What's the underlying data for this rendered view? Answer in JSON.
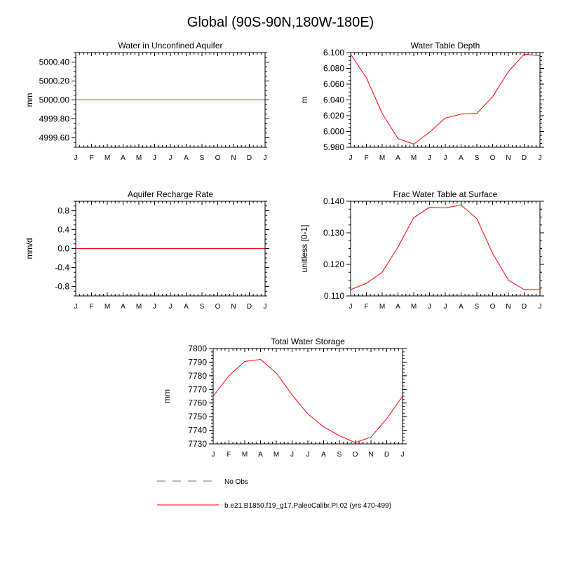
{
  "title": "Global (90S-90N,180W-180E)",
  "style": {
    "series_color": "#ff0000",
    "noobs_color": "#a0a0a0",
    "axis_color": "#000000"
  },
  "month_labels": [
    "J",
    "F",
    "M",
    "A",
    "M",
    "J",
    "J",
    "A",
    "S",
    "O",
    "N",
    "D",
    "J"
  ],
  "legend": {
    "noobs_label": "No Obs",
    "series_label": "b.e21.B1850.f19_g17.PaleoCalibr.PI.02 (yrs 470-499)"
  },
  "chart_data": [
    {
      "type": "line",
      "title": "Water in Unconfined Aquifer",
      "ylabel": "mm",
      "ylim": [
        4999.5,
        5000.5
      ],
      "yticks": [
        4999.6,
        4999.8,
        5000.0,
        5000.2,
        5000.4
      ],
      "yticklabels": [
        "4999.60",
        "4999.80",
        "5000.00",
        "5000.20",
        "5000.40"
      ],
      "values": [
        5000.0,
        5000.0,
        5000.0,
        5000.0,
        5000.0,
        5000.0,
        5000.0,
        5000.0,
        5000.0,
        5000.0,
        5000.0,
        5000.0,
        5000.0
      ]
    },
    {
      "type": "line",
      "title": "Water Table Depth",
      "ylabel": "m",
      "ylim": [
        5.98,
        6.1
      ],
      "yticks": [
        5.98,
        6.0,
        6.02,
        6.04,
        6.06,
        6.08,
        6.1
      ],
      "yticklabels": [
        "5.980",
        "6.000",
        "6.020",
        "6.040",
        "6.060",
        "6.080",
        "6.100"
      ],
      "values": [
        6.098,
        6.068,
        6.023,
        5.991,
        5.984,
        5.999,
        6.017,
        6.022,
        6.023,
        6.044,
        6.076,
        6.098,
        6.096
      ]
    },
    {
      "type": "line",
      "title": "Aquifer Recharge Rate",
      "ylabel": "mm/d",
      "ylim": [
        -1.0,
        1.0
      ],
      "yticks": [
        -0.8,
        -0.4,
        0.0,
        0.4,
        0.8
      ],
      "yticklabels": [
        "-0.8",
        "-0.4",
        "0.0",
        "0.4",
        "0.8"
      ],
      "values": [
        0,
        0,
        0,
        0,
        0,
        0,
        0,
        0,
        0,
        0,
        0,
        0,
        0
      ]
    },
    {
      "type": "line",
      "title": "Frac Water Table at Surface",
      "ylabel": "unitless [0-1]",
      "ylim": [
        0.11,
        0.14
      ],
      "yticks": [
        0.11,
        0.12,
        0.13,
        0.14
      ],
      "yticklabels": [
        "0.110",
        "0.120",
        "0.130",
        "0.140"
      ],
      "values": [
        0.112,
        0.114,
        0.1175,
        0.1255,
        0.1348,
        0.1381,
        0.1379,
        0.1388,
        0.1345,
        0.1235,
        0.115,
        0.112,
        0.112
      ]
    },
    {
      "type": "line",
      "title": "Total Water Storage",
      "ylabel": "mm",
      "ylim": [
        7730,
        7800
      ],
      "yticks": [
        7730,
        7740,
        7750,
        7760,
        7770,
        7780,
        7790,
        7800
      ],
      "yticklabels": [
        "7730",
        "7740",
        "7750",
        "7760",
        "7770",
        "7780",
        "7790",
        "7800"
      ],
      "values": [
        7765,
        7780,
        7790.5,
        7792,
        7782,
        7766,
        7752,
        7742.5,
        7736,
        7731,
        7735,
        7748.5,
        7765
      ]
    }
  ]
}
